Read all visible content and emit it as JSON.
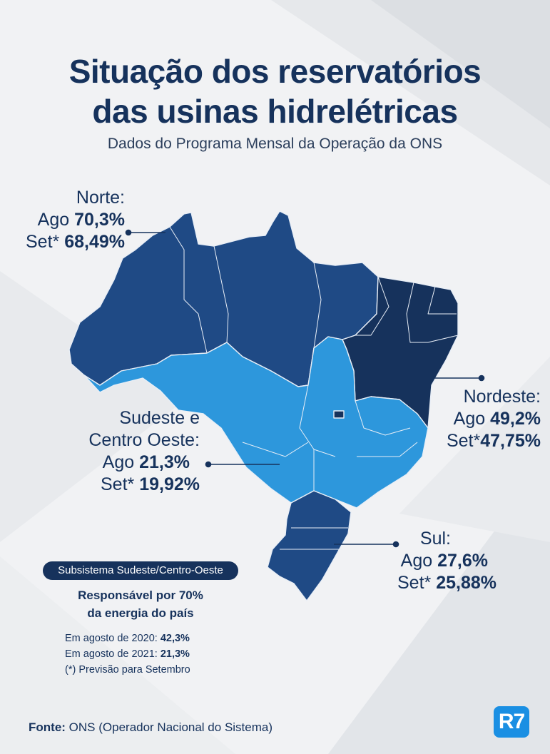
{
  "title": {
    "line1": "Situação dos reservatórios",
    "line2": "das usinas hidrelétricas"
  },
  "subtitle": "Dados do Programa Mensal da Operação da ONS",
  "colors": {
    "dark_navy": "#16325c",
    "medium_navy": "#1f4a85",
    "light_blue": "#2d97dc",
    "background": "#f3f4f6"
  },
  "regions": {
    "norte": {
      "name": "Norte:",
      "ago_label": "Ago",
      "ago_value": "70,3%",
      "set_label": "Set*",
      "set_value": "68,49%"
    },
    "nordeste": {
      "name": "Nordeste:",
      "ago_label": "Ago",
      "ago_value": "49,2%",
      "set_label": "Set*",
      "set_value": "47,75%"
    },
    "sudeste": {
      "name_line1": "Sudeste e",
      "name_line2": "Centro Oeste:",
      "ago_label": "Ago",
      "ago_value": "21,3%",
      "set_label": "Set*",
      "set_value": "19,92%"
    },
    "sul": {
      "name": "Sul:",
      "ago_label": "Ago",
      "ago_value": "27,6%",
      "set_label": "Set*",
      "set_value": "25,88%"
    }
  },
  "note": {
    "badge": "Subsistema Sudeste/Centro-Oeste",
    "main_line1": "Responsável por 70%",
    "main_line2": "da energia do país",
    "line1_label": "Em agosto de 2020:",
    "line1_value": "42,3%",
    "line2_label": "Em agosto de 2021:",
    "line2_value": "21,3%",
    "line3": "(*) Previsão para Setembro"
  },
  "source": {
    "label": "Fonte:",
    "text": "ONS (Operador Nacional do Sistema)"
  },
  "logo": "R7"
}
